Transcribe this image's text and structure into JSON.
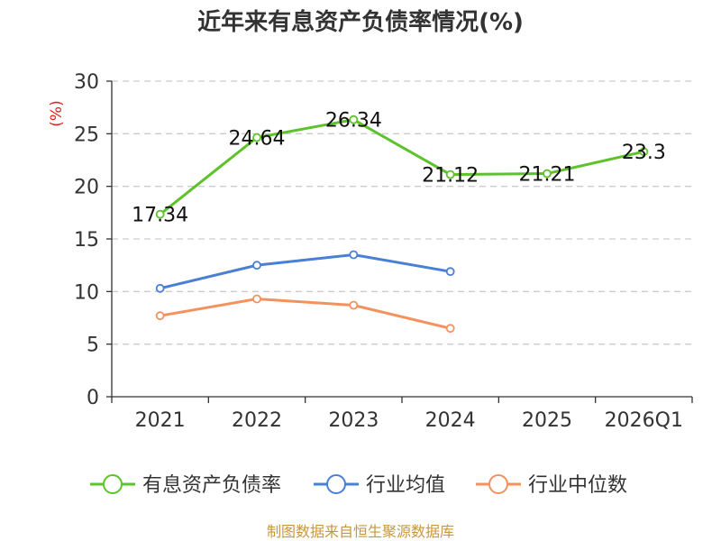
{
  "chart_data": {
    "type": "line",
    "title": "近年来有息资产负债率情况(%)",
    "ylabel": "(%)",
    "xlabel": "",
    "categories": [
      "2021",
      "2022",
      "2023",
      "2024",
      "2025",
      "2026Q1"
    ],
    "ylim": [
      0,
      30
    ],
    "yticks": [
      0,
      5,
      10,
      15,
      20,
      25,
      30
    ],
    "grid": "horizontal-dashed",
    "legend_position": "bottom",
    "series": [
      {
        "name": "有息资产负债率",
        "color": "#5ec22c",
        "values": [
          17.34,
          24.64,
          26.34,
          21.12,
          21.21,
          23.3
        ],
        "labels": [
          "17.34",
          "24.64",
          "26.34",
          "21.12",
          "21.21",
          "23.3"
        ]
      },
      {
        "name": "行业均值",
        "color": "#4a7fd6",
        "values": [
          10.3,
          12.5,
          13.5,
          11.9,
          null,
          null
        ]
      },
      {
        "name": "行业中位数",
        "color": "#f5915c",
        "values": [
          7.7,
          9.3,
          8.7,
          6.5,
          null,
          null
        ]
      }
    ]
  },
  "source": "制图数据来自恒生聚源数据库"
}
